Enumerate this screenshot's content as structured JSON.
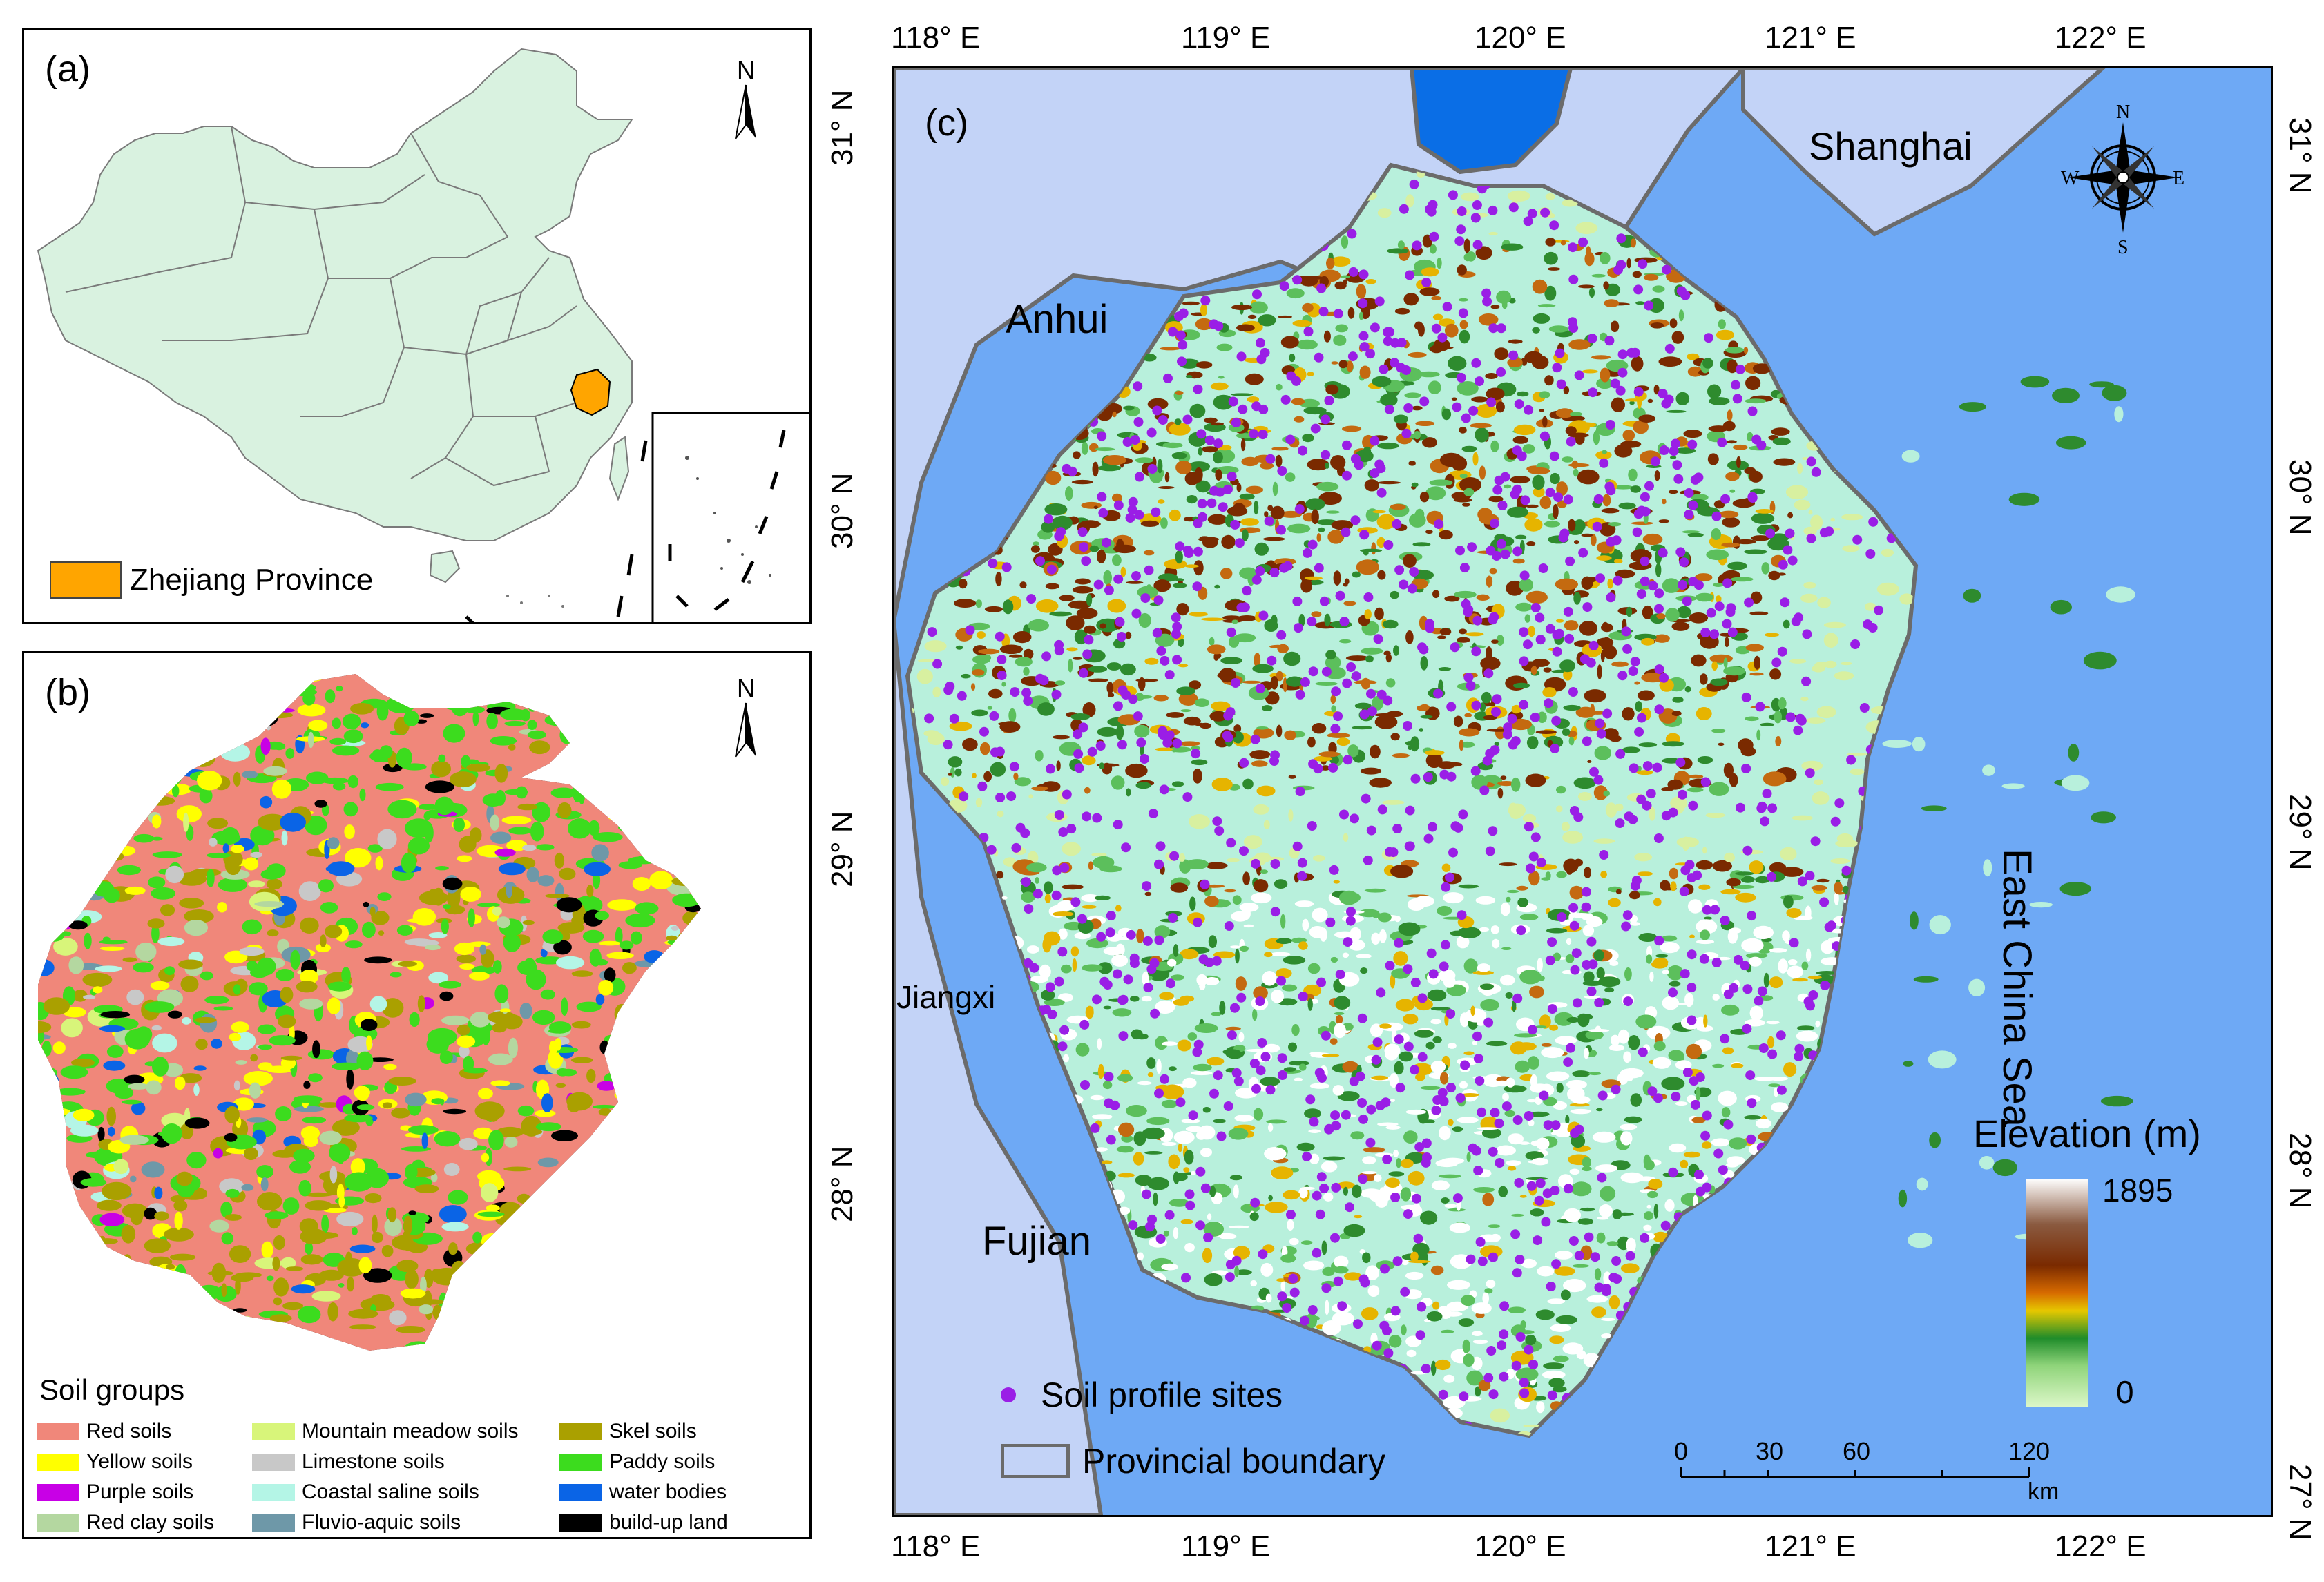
{
  "panel_a": {
    "label": "(a)",
    "north_label": "N",
    "legend_label": "Zhejiang Province",
    "colors": {
      "land": "#d9f2e0",
      "highlight": "#ffa500",
      "border": "#7a7a7a"
    }
  },
  "panel_b": {
    "label": "(b)",
    "north_label": "N",
    "legend_title": "Soil groups",
    "soil_groups": [
      {
        "name": "Red soils",
        "color": "#f0877a"
      },
      {
        "name": "Yellow soils",
        "color": "#ffff00"
      },
      {
        "name": "Purple soils",
        "color": "#c800e6"
      },
      {
        "name": "Red clay soils",
        "color": "#b4d7a0"
      },
      {
        "name": "Mountain meadow soils",
        "color": "#d8f57a"
      },
      {
        "name": "Limestone soils",
        "color": "#c8c8c8"
      },
      {
        "name": "Coastal saline soils",
        "color": "#b4f5e6"
      },
      {
        "name": "Fluvio-aquic soils",
        "color": "#6e98a8"
      },
      {
        "name": "Skel soils",
        "color": "#aaa000"
      },
      {
        "name": "Paddy soils",
        "color": "#3cdc1e"
      },
      {
        "name": "water bodies",
        "color": "#0a64e6"
      },
      {
        "name": "build-up land",
        "color": "#000000"
      }
    ]
  },
  "panel_c": {
    "label": "(c)",
    "lon_labels": [
      "118° E",
      "119° E",
      "120° E",
      "121° E",
      "122° E"
    ],
    "lat_labels_left": [
      "31° N",
      "30° N",
      "29° N",
      "28° N"
    ],
    "lat_labels_right": [
      "31° N",
      "30° N",
      "29° N",
      "28° N",
      "27° N"
    ],
    "places": {
      "shanghai": "Shanghai",
      "anhui": "Anhui",
      "jiangxi": "Jiangxi",
      "fujian": "Fujian",
      "sea": "East China Sea"
    },
    "compass": {
      "n": "N",
      "s": "S",
      "e": "E",
      "w": "W"
    },
    "elevation": {
      "title": "Elevation (m)",
      "max": "1895",
      "min": "0"
    },
    "legend": {
      "sites": "Soil profile sites",
      "boundary": "Provincial boundary"
    },
    "scale": {
      "ticks": [
        "0",
        "30",
        "60",
        "120"
      ],
      "unit": "km"
    },
    "colors": {
      "sea": "#6ea9f5",
      "neighbor": "#c3d3f7",
      "plain": "#b8f0dc",
      "site": "#9a1ee6",
      "boundary": "#6b6b6b",
      "lake": "#0a6ee6"
    }
  }
}
